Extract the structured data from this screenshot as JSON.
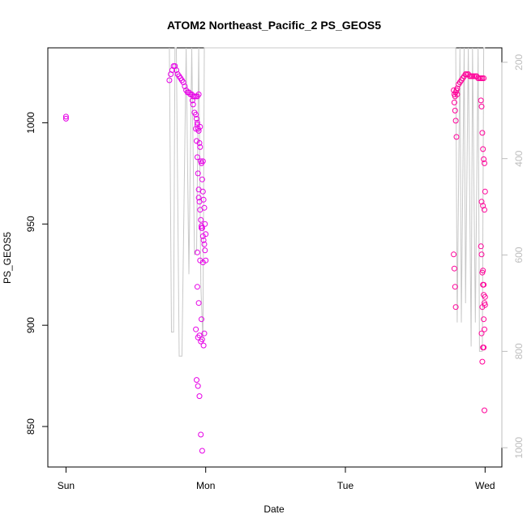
{
  "chart_data": {
    "type": "scatter",
    "title": "ATOM2 Northeast_Pacific_2 PS_GEOS5",
    "xlabel": "Date",
    "ylabel": "PS_GEOS5",
    "x_ticks": [
      "Sun",
      "Mon",
      "Tue",
      "Wed"
    ],
    "xlim": [
      -0.13,
      3.12
    ],
    "ylim": [
      830,
      1037
    ],
    "y_ticks": [
      850,
      900,
      950,
      1000
    ],
    "y2_ticks": [
      200,
      400,
      600,
      800,
      1000
    ],
    "y2lim": [
      1040,
      170
    ],
    "grid": false,
    "legend": "none",
    "colors": {
      "points_magenta": "#e600e6",
      "points_pink": "#ff0099",
      "altitude_line": "#c8c8c8",
      "axis": "#000000",
      "right_axis": "#bdbdbd"
    },
    "series": [
      {
        "kind": "points",
        "x": [
          0.0,
          0.0,
          0.74,
          0.75,
          0.76,
          0.77,
          0.78,
          0.79,
          0.8,
          0.81,
          0.82,
          0.83,
          0.84,
          0.85,
          0.86,
          0.87,
          0.88,
          0.89,
          0.9,
          0.91,
          0.92,
          0.93,
          0.94,
          0.95,
          0.905,
          0.91,
          0.92,
          0.93,
          0.935,
          0.94,
          0.945,
          0.95,
          0.955,
          0.96,
          0.965,
          0.97,
          0.975,
          0.98,
          0.985,
          0.99,
          0.995,
          1.0,
          0.93,
          0.935,
          0.94,
          0.945,
          0.95,
          0.955,
          0.96,
          0.965,
          0.97,
          0.975,
          0.98,
          0.985,
          0.99,
          0.995,
          1.0,
          0.94,
          0.96,
          0.98,
          0.94,
          0.95,
          0.97,
          0.99,
          0.93,
          0.955,
          0.975,
          0.945,
          0.965,
          0.985,
          0.935,
          0.945,
          0.955,
          0.965,
          0.975,
          0.94,
          0.96,
          0.98,
          0.95,
          0.97
        ],
        "y": [
          1003,
          1002,
          1021,
          1024,
          1026,
          1028,
          1028,
          1026,
          1024,
          1023,
          1022,
          1021,
          1020,
          1018,
          1016,
          1015,
          1015,
          1014,
          1014,
          1013,
          1013,
          1013,
          1013,
          1014,
          1011,
          1009,
          1005,
          997,
          991,
          983,
          975,
          967,
          961,
          957,
          952,
          949,
          948,
          944,
          942,
          940,
          937,
          932,
          1004,
          1002,
          999,
          997,
          996,
          990,
          988,
          981,
          980,
          972,
          966,
          962,
          958,
          950,
          945,
          936,
          932,
          931,
          919,
          911,
          903,
          896,
          898,
          895,
          893,
          894,
          892,
          890,
          873,
          870,
          865,
          846,
          838,
          1000,
          998,
          981,
          963,
          948
        ]
      },
      {
        "kind": "points",
        "x": [
          2.78,
          2.785,
          2.79,
          2.795,
          2.8,
          2.81,
          2.82,
          2.83,
          2.84,
          2.85,
          2.86,
          2.87,
          2.88,
          2.89,
          2.9,
          2.91,
          2.92,
          2.93,
          2.94,
          2.95,
          2.96,
          2.97,
          2.98,
          2.99,
          2.775,
          2.78,
          2.785,
          2.79,
          2.795,
          2.8,
          2.775,
          2.78,
          2.785,
          2.79,
          2.97,
          2.975,
          2.98,
          2.985,
          2.99,
          2.995,
          3.0,
          2.975,
          2.985,
          2.995,
          2.97,
          2.975,
          2.98,
          2.985,
          2.99,
          2.995,
          3.0,
          2.98,
          2.99,
          2.995,
          2.975,
          2.985,
          2.99,
          2.98,
          2.995,
          2.985,
          2.99,
          3.0
        ],
        "y": [
          1014,
          1013,
          1015,
          1016,
          1017,
          1019,
          1020,
          1021,
          1022,
          1023,
          1024,
          1024,
          1024,
          1023,
          1023,
          1023,
          1023,
          1023,
          1023,
          1022,
          1022,
          1022,
          1022,
          1022,
          1016,
          1010,
          1006,
          1001,
          993,
          1014,
          935,
          928,
          919,
          909,
          1011,
          1008,
          995,
          987,
          982,
          980,
          966,
          961,
          959,
          957,
          939,
          935,
          926,
          920,
          915,
          911,
          910,
          909,
          903,
          898,
          896,
          889,
          889,
          882,
          858,
          927,
          920,
          914
        ]
      },
      {
        "kind": "altitude_line",
        "axis": "right",
        "x": [
          0.74,
          0.755,
          0.77,
          0.78,
          0.79,
          0.81,
          0.83,
          0.86,
          0.88,
          0.9,
          0.92,
          0.935,
          0.95,
          0.965,
          0.98,
          0.99,
          1.0,
          1.0,
          2.76,
          2.78,
          2.79,
          2.8,
          2.82,
          2.83,
          2.85,
          2.86,
          2.88,
          2.9,
          2.91,
          2.93,
          2.95,
          2.96,
          2.98,
          2.99,
          3.0,
          3.0
        ],
        "y": [
          170,
          760,
          760,
          170,
          170,
          810,
          810,
          170,
          640,
          170,
          600,
          590,
          170,
          660,
          780,
          170,
          170,
          170,
          170,
          170,
          170,
          740,
          170,
          740,
          170,
          700,
          170,
          790,
          170,
          740,
          170,
          800,
          800,
          170,
          170,
          170
        ]
      }
    ]
  }
}
